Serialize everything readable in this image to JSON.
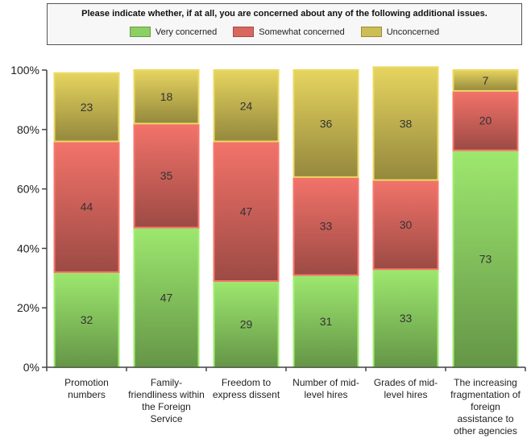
{
  "chart_data": {
    "type": "bar",
    "stacked": true,
    "title": "Please indicate whether, if at all, you are concerned about any of the following additional issues.",
    "categories": [
      "Promotion numbers",
      "Family-friendliness within the Foreign Service",
      "Freedom to express dissent",
      "Number of mid-level hires",
      "Grades of mid-level hires",
      "The increasing fragmentation of foreign assistance to other agencies"
    ],
    "series": [
      {
        "name": "Very concerned",
        "color": "#8ccf62",
        "values": [
          32,
          47,
          29,
          31,
          33,
          73
        ]
      },
      {
        "name": "Somewhat concerned",
        "color": "#d9675f",
        "values": [
          44,
          35,
          47,
          33,
          30,
          20
        ]
      },
      {
        "name": "Unconcerned",
        "color": "#cdbd55",
        "values": [
          23,
          18,
          24,
          36,
          38,
          7
        ]
      }
    ],
    "yticks": [
      "0%",
      "20%",
      "40%",
      "60%",
      "80%",
      "100%"
    ],
    "ylim": [
      0,
      100
    ],
    "legend_position": "top",
    "grid": false
  }
}
